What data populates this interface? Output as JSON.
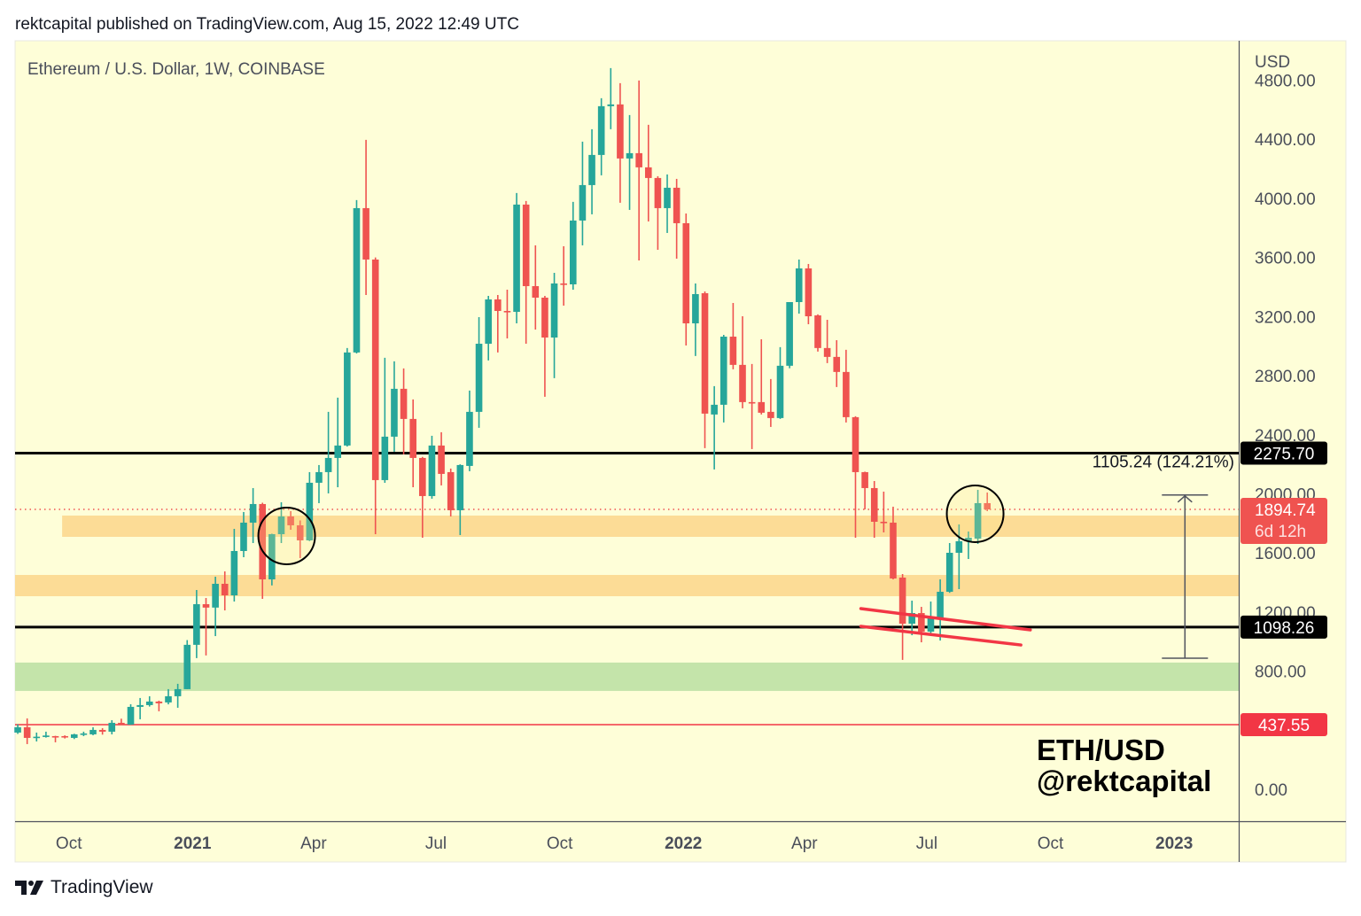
{
  "header": {
    "text": "rektcapital published on TradingView.com, Aug 15, 2022 12:49 UTC"
  },
  "footer": {
    "brand": "TradingView",
    "logo_icon": "tradingview-logo-icon"
  },
  "colors": {
    "up": "#26a69a",
    "down": "#ef5350",
    "background": "#fefed8",
    "zone_orange": "#fcdc96",
    "zone_green": "#c4e4aa",
    "level_black": "#000000",
    "level_red": "#f23645"
  },
  "watermark": {
    "line1": "ETH/USD",
    "line2": "@rektcapital"
  },
  "chart_data": {
    "type": "candlestick",
    "title": "Ethereum / U.S. Dollar, 1W, COINBASE",
    "currency": "USD",
    "xlim": [
      "2020-08-22",
      "2023-02-18"
    ],
    "ylim": [
      -216,
      5067
    ],
    "grid": false,
    "y_ticks": [
      {
        "value": 4800,
        "label": "4800.00"
      },
      {
        "value": 4400,
        "label": "4400.00"
      },
      {
        "value": 4000,
        "label": "4000.00"
      },
      {
        "value": 3600,
        "label": "3600.00"
      },
      {
        "value": 3200,
        "label": "3200.00"
      },
      {
        "value": 2800,
        "label": "2800.00"
      },
      {
        "value": 2400,
        "label": "2400.00"
      },
      {
        "value": 2000,
        "label": "2000.00"
      },
      {
        "value": 1600,
        "label": "1600.00"
      },
      {
        "value": 1200,
        "label": "1200.00"
      },
      {
        "value": 800,
        "label": "800.00"
      },
      {
        "value": 0,
        "label": "0.00"
      }
    ],
    "x_ticks": [
      {
        "date": "2020-10-01",
        "label": "Oct",
        "bold": false
      },
      {
        "date": "2021-01-01",
        "label": "2021",
        "bold": true
      },
      {
        "date": "2021-04-01",
        "label": "Apr",
        "bold": false
      },
      {
        "date": "2021-07-01",
        "label": "Jul",
        "bold": false
      },
      {
        "date": "2021-10-01",
        "label": "Oct",
        "bold": false
      },
      {
        "date": "2022-01-01",
        "label": "2022",
        "bold": true
      },
      {
        "date": "2022-04-01",
        "label": "Apr",
        "bold": false
      },
      {
        "date": "2022-07-01",
        "label": "Jul",
        "bold": false
      },
      {
        "date": "2022-10-01",
        "label": "Oct",
        "bold": false
      },
      {
        "date": "2023-01-01",
        "label": "2023",
        "bold": true
      }
    ],
    "candles_fields": [
      "date",
      "open",
      "high",
      "low",
      "close"
    ],
    "candles": [
      [
        "2020-08-24",
        384,
        440,
        375,
        420
      ],
      [
        "2020-08-31",
        420,
        480,
        306,
        348
      ],
      [
        "2020-09-07",
        348,
        384,
        324,
        356
      ],
      [
        "2020-09-14",
        354,
        390,
        350,
        364
      ],
      [
        "2020-09-21",
        360,
        362,
        318,
        355
      ],
      [
        "2020-09-28",
        360,
        365,
        344,
        353
      ],
      [
        "2020-10-05",
        348,
        376,
        340,
        372
      ],
      [
        "2020-10-12",
        370,
        390,
        360,
        378
      ],
      [
        "2020-10-19",
        372,
        420,
        366,
        402
      ],
      [
        "2020-10-26",
        402,
        414,
        370,
        390
      ],
      [
        "2020-11-02",
        390,
        468,
        372,
        450
      ],
      [
        "2020-11-09",
        450,
        478,
        436,
        438
      ],
      [
        "2020-11-16",
        438,
        576,
        436,
        558
      ],
      [
        "2020-11-23",
        558,
        618,
        474,
        570
      ],
      [
        "2020-11-30",
        570,
        630,
        560,
        594
      ],
      [
        "2020-12-07",
        594,
        600,
        528,
        582
      ],
      [
        "2020-12-14",
        588,
        678,
        575,
        630
      ],
      [
        "2020-12-21",
        630,
        714,
        552,
        678
      ],
      [
        "2020-12-28",
        678,
        1010,
        678,
        978
      ],
      [
        "2021-01-04",
        978,
        1349,
        888,
        1253
      ],
      [
        "2021-01-11",
        1253,
        1295,
        906,
        1230
      ],
      [
        "2021-01-18",
        1230,
        1439,
        1037,
        1391
      ],
      [
        "2021-01-25",
        1391,
        1475,
        1211,
        1313
      ],
      [
        "2021-02-01",
        1313,
        1763,
        1271,
        1613
      ],
      [
        "2021-02-08",
        1613,
        1877,
        1571,
        1805
      ],
      [
        "2021-02-15",
        1805,
        2039,
        1667,
        1931
      ],
      [
        "2021-02-22",
        1931,
        1940,
        1289,
        1421
      ],
      [
        "2021-03-01",
        1421,
        1730,
        1380,
        1727
      ],
      [
        "2021-03-08",
        1727,
        1943,
        1667,
        1847
      ],
      [
        "2021-03-15",
        1847,
        1883,
        1757,
        1787
      ],
      [
        "2021-03-22",
        1787,
        1820,
        1565,
        1685
      ],
      [
        "2021-03-29",
        1685,
        2147,
        1680,
        2075
      ],
      [
        "2021-04-05",
        2075,
        2195,
        1937,
        2147
      ],
      [
        "2021-04-12",
        2147,
        2555,
        2003,
        2243
      ],
      [
        "2021-04-19",
        2243,
        2651,
        2045,
        2327
      ],
      [
        "2021-04-26",
        2327,
        2987,
        2320,
        2957
      ],
      [
        "2021-05-03",
        2957,
        3988,
        2950,
        3934
      ],
      [
        "2021-05-10",
        3934,
        4396,
        3346,
        3586
      ],
      [
        "2021-05-17",
        3586,
        3600,
        1727,
        2093
      ],
      [
        "2021-05-24",
        2093,
        2921,
        2075,
        2387
      ],
      [
        "2021-05-31",
        2387,
        2897,
        2285,
        2711
      ],
      [
        "2021-06-07",
        2711,
        2849,
        2267,
        2507
      ],
      [
        "2021-06-14",
        2507,
        2639,
        2045,
        2243
      ],
      [
        "2021-06-21",
        2243,
        2250,
        1703,
        1985
      ],
      [
        "2021-06-28",
        1985,
        2393,
        1967,
        2327
      ],
      [
        "2021-07-05",
        2327,
        2417,
        2057,
        2135
      ],
      [
        "2021-07-12",
        2147,
        2171,
        1847,
        1889
      ],
      [
        "2021-07-19",
        1889,
        2200,
        1721,
        2195
      ],
      [
        "2021-07-26",
        2189,
        2699,
        2153,
        2555
      ],
      [
        "2021-08-02",
        2555,
        3196,
        2447,
        3016
      ],
      [
        "2021-08-09",
        3016,
        3340,
        2903,
        3316
      ],
      [
        "2021-08-16",
        3316,
        3346,
        2957,
        3238
      ],
      [
        "2021-08-23",
        3238,
        3382,
        3052,
        3232
      ],
      [
        "2021-08-30",
        3232,
        4036,
        3154,
        3958
      ],
      [
        "2021-09-06",
        3958,
        3982,
        3016,
        3406
      ],
      [
        "2021-09-13",
        3406,
        3682,
        3112,
        3328
      ],
      [
        "2021-09-20",
        3328,
        3340,
        2657,
        3058
      ],
      [
        "2021-09-27",
        3058,
        3496,
        2783,
        3424
      ],
      [
        "2021-10-04",
        3424,
        3676,
        3274,
        3418
      ],
      [
        "2021-10-11",
        3418,
        3976,
        3382,
        3850
      ],
      [
        "2021-10-18",
        3850,
        4384,
        3682,
        4090
      ],
      [
        "2021-10-25",
        4090,
        4468,
        3892,
        4294
      ],
      [
        "2021-11-01",
        4294,
        4678,
        4156,
        4624
      ],
      [
        "2021-11-08",
        4624,
        4882,
        4468,
        4636
      ],
      [
        "2021-11-15",
        4636,
        4780,
        3970,
        4270
      ],
      [
        "2021-11-22",
        4270,
        4564,
        3922,
        4306
      ],
      [
        "2021-11-29",
        4306,
        4798,
        3580,
        4210
      ],
      [
        "2021-12-06",
        4210,
        4498,
        3844,
        4138
      ],
      [
        "2021-12-13",
        4138,
        4150,
        3652,
        3934
      ],
      [
        "2021-12-20",
        3934,
        4162,
        3766,
        4072
      ],
      [
        "2021-12-27",
        4072,
        4132,
        3592,
        3832
      ],
      [
        "2022-01-03",
        3832,
        3898,
        3004,
        3154
      ],
      [
        "2022-01-10",
        3154,
        3424,
        2933,
        3352
      ],
      [
        "2022-01-17",
        3358,
        3370,
        2309,
        2543
      ],
      [
        "2022-01-24",
        2537,
        2729,
        2165,
        2603
      ],
      [
        "2022-01-31",
        2603,
        3076,
        2483,
        3064
      ],
      [
        "2022-02-07",
        3064,
        3292,
        2843,
        2873
      ],
      [
        "2022-02-14",
        2873,
        3202,
        2579,
        2621
      ],
      [
        "2022-02-21",
        2621,
        2879,
        2303,
        2615
      ],
      [
        "2022-02-28",
        2621,
        3046,
        2537,
        2549
      ],
      [
        "2022-03-07",
        2555,
        2777,
        2453,
        2513
      ],
      [
        "2022-03-14",
        2513,
        2993,
        2507,
        2867
      ],
      [
        "2022-03-21",
        2867,
        3298,
        2850,
        3298
      ],
      [
        "2022-03-28",
        3298,
        3586,
        3220,
        3526
      ],
      [
        "2022-04-04",
        3526,
        3556,
        3148,
        3202
      ],
      [
        "2022-04-11",
        3208,
        3215,
        2963,
        2987
      ],
      [
        "2022-04-18",
        2987,
        3178,
        2885,
        2927
      ],
      [
        "2022-04-25",
        2927,
        3040,
        2723,
        2825
      ],
      [
        "2022-05-02",
        2825,
        2975,
        2483,
        2519
      ],
      [
        "2022-05-09",
        2519,
        2525,
        1703,
        2147
      ],
      [
        "2022-05-16",
        2147,
        2150,
        1895,
        2039
      ],
      [
        "2022-05-23",
        2039,
        2087,
        1703,
        1811
      ],
      [
        "2022-05-30",
        1811,
        2015,
        1739,
        1805
      ],
      [
        "2022-06-06",
        1805,
        1913,
        1421,
        1427
      ],
      [
        "2022-06-13",
        1433,
        1457,
        876,
        1121
      ],
      [
        "2022-06-20",
        1121,
        1277,
        1043,
        1193
      ],
      [
        "2022-06-27",
        1193,
        1235,
        995,
        1067
      ],
      [
        "2022-07-04",
        1067,
        1271,
        1043,
        1163
      ],
      [
        "2022-07-11",
        1163,
        1421,
        1007,
        1337
      ],
      [
        "2022-07-18",
        1337,
        1667,
        1330,
        1601
      ],
      [
        "2022-07-25",
        1601,
        1793,
        1355,
        1679
      ],
      [
        "2022-08-01",
        1679,
        1745,
        1559,
        1703
      ],
      [
        "2022-08-08",
        1697,
        2027,
        1661,
        1937
      ],
      [
        "2022-08-15",
        1937,
        2009,
        1883,
        1894.74
      ]
    ],
    "zones": [
      {
        "from": "2020-09-26",
        "low": 1709,
        "high": 1853,
        "color": "#fcdc96"
      },
      {
        "from": "2020-08-22",
        "low": 1307,
        "high": 1451,
        "color": "#fcdc96"
      },
      {
        "from": "2020-08-22",
        "low": 666,
        "high": 858,
        "color": "#c4e4aa"
      }
    ],
    "levels": [
      {
        "price": 2275.7,
        "label": "2275.70",
        "color": "#000000",
        "style": "solid"
      },
      {
        "price": 1098.26,
        "label": "1098.26",
        "color": "#000000",
        "style": "solid"
      },
      {
        "price": 437.55,
        "label": "437.55",
        "color": "#f23645",
        "style": "solid"
      }
    ],
    "last_price": {
      "price": 1894.74,
      "label": "1894.74",
      "countdown": "6d 12h",
      "color": "#ef5350"
    },
    "trendlines": [
      {
        "start": [
          "2022-05-13",
          1223
        ],
        "end": [
          "2022-09-16",
          1079
        ],
        "color": "#f23645"
      },
      {
        "start": [
          "2022-05-13",
          1103
        ],
        "end": [
          "2022-09-09",
          977
        ],
        "color": "#f23645"
      }
    ],
    "circles": [
      {
        "date": "2021-03-12",
        "price": 1715
      },
      {
        "date": "2022-08-06",
        "price": 1865
      }
    ],
    "measure": {
      "date": "2023-01-09",
      "from": 887,
      "to": 1992,
      "label": "1105.24 (124.21%)"
    }
  }
}
